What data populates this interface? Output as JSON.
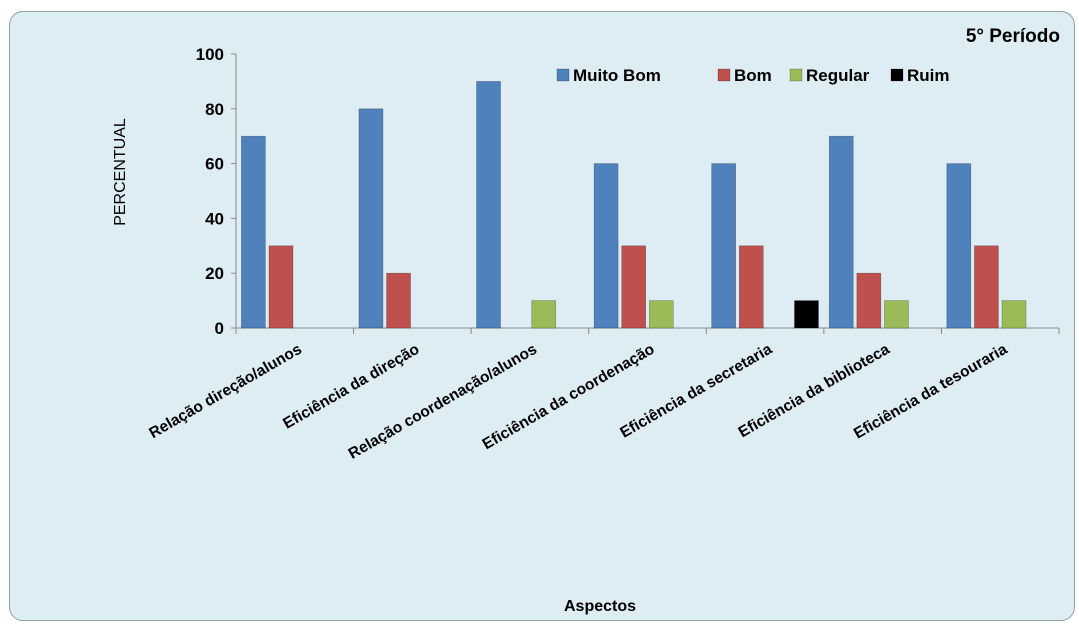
{
  "chart_data": {
    "type": "bar",
    "title": "5° Período",
    "xlabel": "Aspectos",
    "ylabel": "PERCENTUAL",
    "ylim": [
      0,
      100
    ],
    "yticks": [
      0,
      20,
      40,
      60,
      80,
      100
    ],
    "grid": false,
    "legend_position": "top-right",
    "categories": [
      "Relação direção/alunos",
      "Eficiência da direção",
      "Relação coordenação/alunos",
      "Eficiência da coordenação",
      "Eficiência da secretaria",
      "Eficiência da biblioteca",
      "Eficiência da tesouraria"
    ],
    "series": [
      {
        "name": "Muito Bom",
        "color": "#4f81bd",
        "values": [
          70,
          80,
          90,
          60,
          60,
          70,
          60
        ]
      },
      {
        "name": "Bom",
        "color": "#c0504d",
        "values": [
          30,
          20,
          0,
          30,
          30,
          20,
          30
        ]
      },
      {
        "name": "Regular",
        "color": "#9bbb59",
        "values": [
          0,
          0,
          10,
          10,
          0,
          10,
          10
        ]
      },
      {
        "name": "Ruim",
        "color": "#000000",
        "values": [
          0,
          0,
          0,
          0,
          10,
          0,
          0
        ]
      }
    ]
  }
}
